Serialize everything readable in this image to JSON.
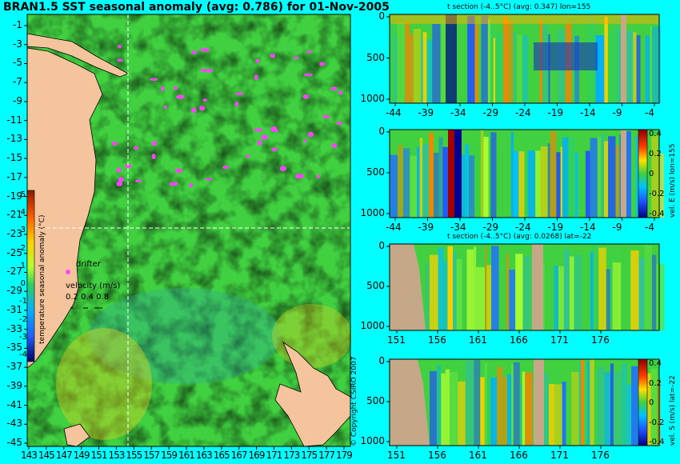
{
  "title": "BRAN1.5 SST seasonal anomaly (avg: 0.786) for 01-Nov-2005",
  "map": {
    "lat_ticks": [
      "-1",
      "-3",
      "-5",
      "-7",
      "-9",
      "-11",
      "-13",
      "-15",
      "-17",
      "-19",
      "-21",
      "-23",
      "-25",
      "-27",
      "-29",
      "-31",
      "-33",
      "-35",
      "-37",
      "-39",
      "-41",
      "-43",
      "-45"
    ],
    "lon_ticks": [
      "143",
      "145",
      "147",
      "149",
      "151",
      "153",
      "155",
      "157",
      "159",
      "161",
      "163",
      "165",
      "167",
      "169",
      "171",
      "173",
      "175",
      "177",
      "179"
    ],
    "colorbar_label": "temperature seasonal anomaly (°C)",
    "colorbar_ticks": [
      "5",
      "4",
      "3",
      "2",
      "1",
      "0",
      "-1",
      "-2",
      "-3",
      "-4"
    ],
    "drifter_label": "drifter",
    "velocity_label": "velocity (m/s)",
    "velocity_values": "0.2 0.4 0.8",
    "copyright": "© Copyright CSIRO 2007",
    "colors": {
      "background": "#00ffff",
      "land": "#f4c49c",
      "drifter": "#ff44ff",
      "crosshair": "#ffffff"
    }
  },
  "panels": [
    {
      "title": "t section (-4..5°C) (avg: 0.347) lon=155",
      "y_ticks": [
        "0",
        "500",
        "1000"
      ],
      "x_ticks": [
        "-44",
        "-39",
        "-34",
        "-29",
        "-24",
        "-19",
        "-14",
        "-9",
        "-4"
      ],
      "side_label": ""
    },
    {
      "title": "",
      "y_ticks": [
        "0",
        "500",
        "1000"
      ],
      "x_ticks": [
        "-44",
        "-39",
        "-34",
        "-29",
        "-24",
        "-19",
        "-14",
        "-9",
        "-4"
      ],
      "side_label": "vel. E (m/s) lon=155",
      "colorbar_ticks": [
        "0.4",
        "0.2",
        "0",
        "-0.2",
        "-0.4"
      ]
    },
    {
      "title": "t section (-4..5°C) (avg: 0.0268) lat=-22",
      "y_ticks": [
        "0",
        "500",
        "1000"
      ],
      "x_ticks": [
        "151",
        "156",
        "161",
        "166",
        "171",
        "176"
      ],
      "side_label": ""
    },
    {
      "title": "",
      "y_ticks": [
        "0",
        "500",
        "1000"
      ],
      "x_ticks": [
        "151",
        "156",
        "161",
        "166",
        "171",
        "176"
      ],
      "side_label": "vel. S (m/s) lat=-22",
      "colorbar_ticks": [
        "0.4",
        "0.2",
        "0",
        "-0.2",
        "-0.4"
      ]
    }
  ]
}
